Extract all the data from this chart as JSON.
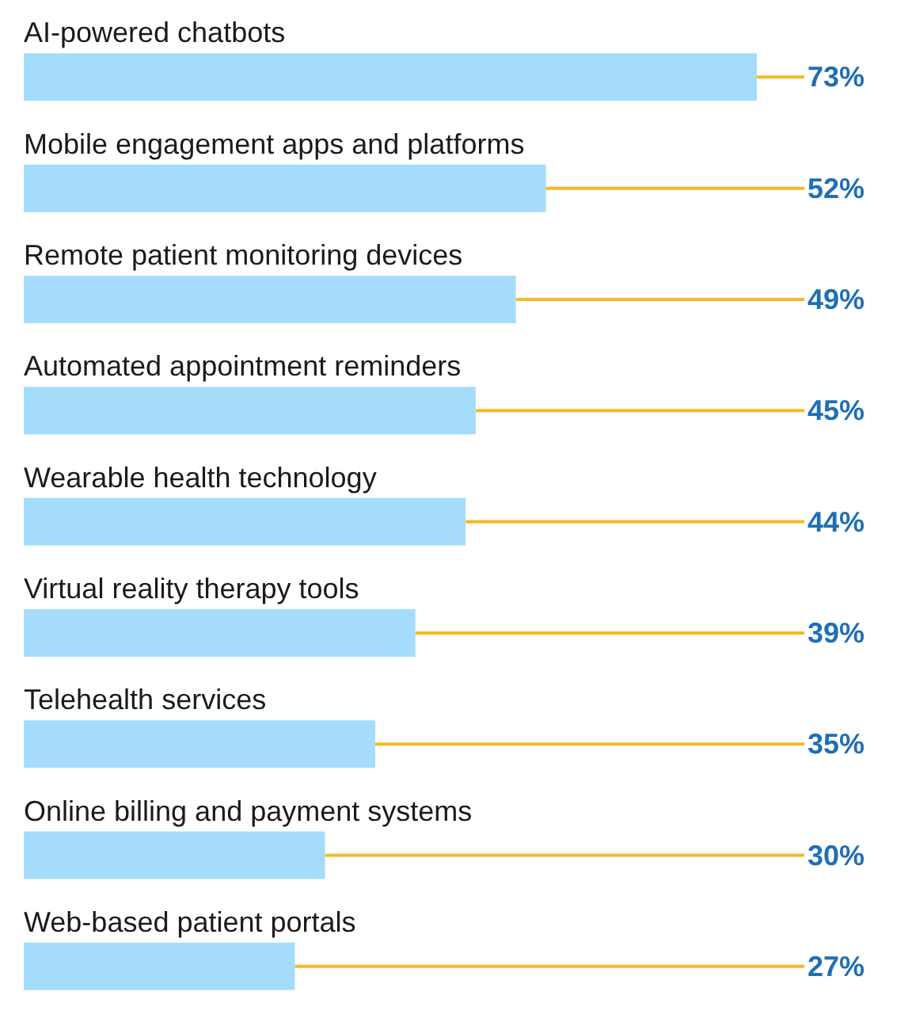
{
  "chart_data": {
    "type": "bar",
    "orientation": "horizontal",
    "categories": [
      "AI-powered chatbots",
      "Mobile engagement apps and platforms",
      "Remote patient monitoring devices",
      "Automated appointment reminders",
      "Wearable health technology",
      "Virtual reality therapy tools",
      "Telehealth services",
      "Online billing and payment systems",
      "Web-based patient portals"
    ],
    "values": [
      73,
      52,
      49,
      45,
      44,
      39,
      35,
      30,
      27
    ],
    "value_labels": [
      "73%",
      "52%",
      "49%",
      "45%",
      "44%",
      "39%",
      "35%",
      "30%",
      "27%"
    ],
    "color": "#a6dcfb"
  }
}
